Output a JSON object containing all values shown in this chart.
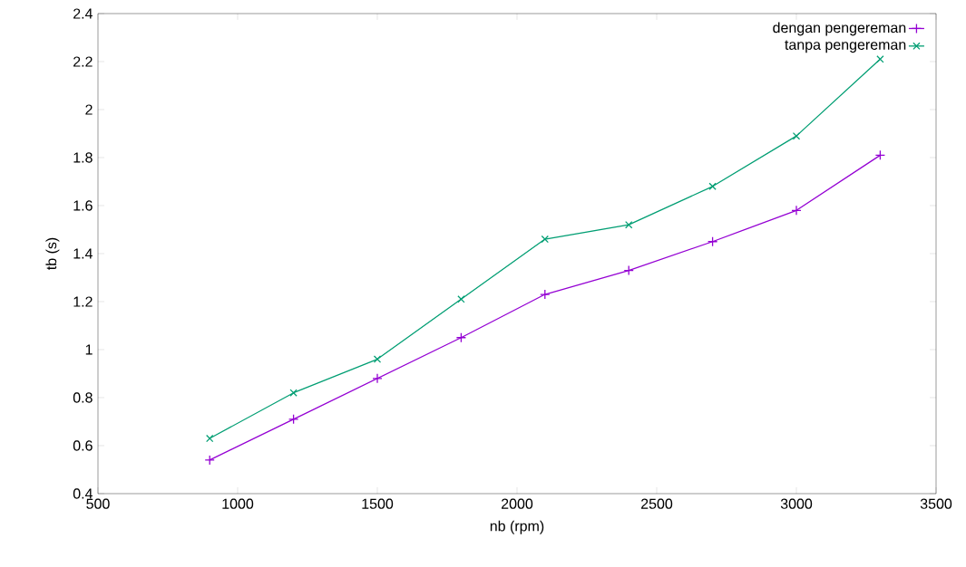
{
  "chart_data": {
    "type": "line",
    "xlabel": "nb (rpm)",
    "ylabel": "tb (s)",
    "x": [
      900,
      1200,
      1500,
      1800,
      2100,
      2400,
      2700,
      3000,
      3300
    ],
    "series": [
      {
        "name": "dengan pengereman",
        "color": "#9400d3",
        "marker": "cross",
        "values": [
          0.54,
          0.71,
          0.88,
          1.05,
          1.23,
          1.33,
          1.45,
          1.58,
          1.81
        ]
      },
      {
        "name": "tanpa pengereman",
        "color": "#009e73",
        "marker": "x",
        "values": [
          0.63,
          0.82,
          0.96,
          1.21,
          1.46,
          1.52,
          1.68,
          1.89,
          2.21
        ]
      }
    ],
    "xlim": [
      500,
      3500
    ],
    "xticks": [
      500,
      1000,
      1500,
      2000,
      2500,
      3000,
      3500
    ],
    "ylim": [
      0.4,
      2.4
    ],
    "yticks": [
      0.4,
      0.6,
      0.8,
      1,
      1.2,
      1.4,
      1.6,
      1.8,
      2,
      2.2,
      2.4
    ],
    "grid": false,
    "legend": "top right",
    "line_style": "solid"
  }
}
